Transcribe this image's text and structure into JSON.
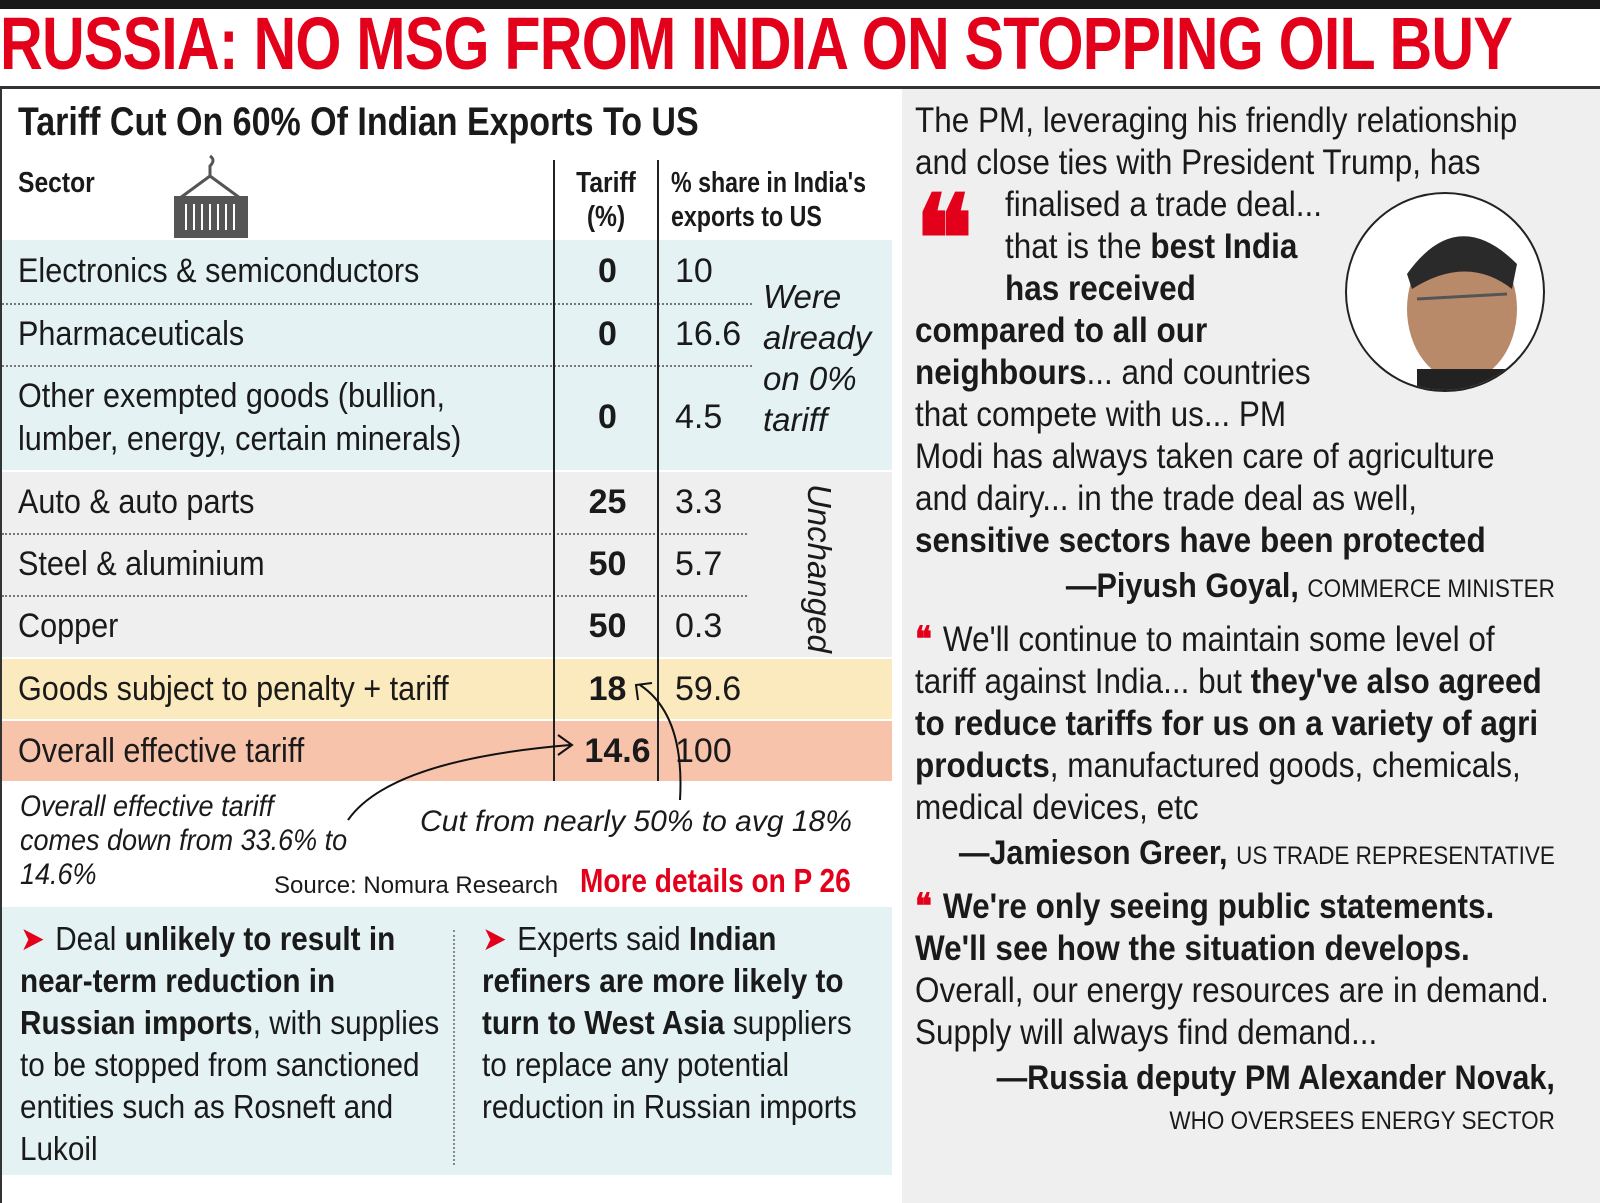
{
  "headline": "RUSSIA: NO MSG FROM INDIA ON STOPPING OIL BUY",
  "table": {
    "title": "Tariff Cut On 60% Of Indian Exports To US",
    "headers": {
      "sector": "Sector",
      "tariff": "Tariff (%)",
      "share": "% share in India's exports to US"
    },
    "rows": [
      {
        "sector": "Electronics & semiconductors",
        "tariff": "0",
        "share": "10",
        "group": "exempt"
      },
      {
        "sector": "Pharmaceuticals",
        "tariff": "0",
        "share": "16.6",
        "group": "exempt"
      },
      {
        "sector": "Other exempted goods (bullion, lumber, energy, certain minerals)",
        "tariff": "0",
        "share": "4.5",
        "group": "exempt"
      },
      {
        "sector": "Auto & auto parts",
        "tariff": "25",
        "share": "3.3",
        "group": "unchanged"
      },
      {
        "sector": "Steel & aluminium",
        "tariff": "50",
        "share": "5.7",
        "group": "unchanged"
      },
      {
        "sector": "Copper",
        "tariff": "50",
        "share": "0.3",
        "group": "unchanged"
      },
      {
        "sector": "Goods subject to penalty + tariff",
        "tariff": "18",
        "share": "59.6",
        "group": "penalty"
      },
      {
        "sector": "Overall effective tariff",
        "tariff": "14.6",
        "share": "100",
        "group": "overall"
      }
    ],
    "group_notes": {
      "exempt": "Were already on 0% tariff",
      "unchanged": "Unchanged"
    },
    "annotations": {
      "overall": "Overall effective tariff comes down from 33.6% to 14.6%",
      "cut": "Cut from nearly 50% to avg 18%"
    },
    "source": "Source: Nomura Research",
    "more_details": "More details on P 26",
    "icon": "cargo-container-icon",
    "colors": {
      "exempt": "#e4f2f4",
      "unchanged": "#efefef",
      "penalty": "#fbeabd",
      "overall": "#f7c3ab",
      "accent": "#e3001b"
    }
  },
  "bullets": [
    {
      "pre": "Deal ",
      "bold": "unlikely to result in near-term reduction in Russian imports",
      "post": ", with supplies to be stopped from sanctioned entities such as Rosneft and Lukoil"
    },
    {
      "pre": "Experts said ",
      "bold": "Indian refiners are more likely to turn to West Asia",
      "post": " suppliers to replace any potential reduction in Russian imports"
    }
  ],
  "quotes": [
    {
      "t1": "The PM, leveraging his friendly relationship and close ties with President Trump, has finalised a trade deal... that is the ",
      "b1": "best India has received compared to all our neighbours",
      "t2": "... and countries that compete with us... PM Modi has always taken care of agriculture and dairy... in the trade deal as well, ",
      "b2": "sensitive sectors have been protected",
      "t3": "",
      "name": "—Piyush Goyal,",
      "role": "COMMERCE MINISTER"
    },
    {
      "t1": "We'll continue to maintain some level of tariff against India... but ",
      "b1": "they've also agreed to reduce tariffs for us on a variety of agri products",
      "t2": ", manufactured goods, chemicals, medical devices, etc",
      "b2": "",
      "t3": "",
      "name": "—Jamieson Greer,",
      "role": "US TRADE REPRESENTATIVE"
    },
    {
      "t1": "",
      "b1": "We're only seeing public statements. We'll see how the situation develops.",
      "t2": " Overall, our energy resources are in demand. Supply will always find demand...",
      "b2": "",
      "t3": "",
      "name": "—Russia deputy PM Alexander Novak,",
      "role": "WHO OVERSEES ENERGY SECTOR"
    }
  ]
}
